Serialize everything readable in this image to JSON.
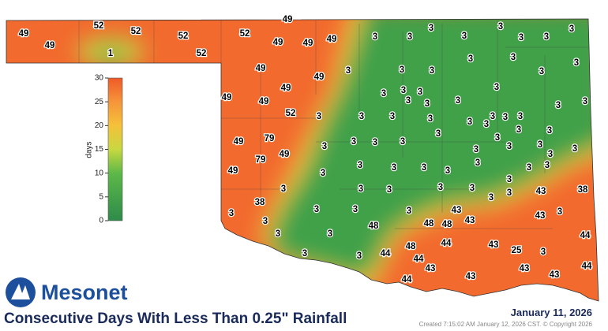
{
  "map": {
    "title": "Consecutive Days With Less Than 0.25\" Rainfall",
    "date": "January 11, 2026",
    "created": "Created 7:15:02 AM January 12, 2026 CST. © Copyright 2026",
    "logo": "Mesonet",
    "colorbar": {
      "label": "days",
      "range": [
        0,
        30
      ],
      "ticks": [
        0,
        5,
        10,
        15,
        20,
        25,
        30
      ]
    },
    "station_values": [
      49,
      49,
      52,
      1,
      52,
      52,
      52,
      49,
      52,
      49,
      49,
      49,
      3,
      3,
      3,
      3,
      3,
      3,
      3,
      3,
      3,
      3,
      3,
      3,
      3,
      3,
      3,
      3,
      49,
      49,
      49,
      49,
      49,
      3,
      3,
      3,
      3,
      3,
      3,
      3,
      3,
      52,
      3,
      3,
      3,
      3,
      3,
      3,
      3,
      3,
      3,
      3,
      49,
      79,
      3,
      3,
      3,
      3,
      3,
      3,
      3,
      3,
      3,
      79,
      49,
      3,
      3,
      3,
      49,
      3,
      3,
      3,
      3,
      3,
      3,
      3,
      3,
      3,
      3,
      3,
      3,
      3,
      3,
      3,
      3,
      43,
      38,
      38,
      3,
      3,
      3,
      3,
      3,
      43,
      43,
      3,
      3,
      3,
      48,
      48,
      48,
      43,
      44,
      48,
      44,
      43,
      25,
      3,
      3,
      3,
      44,
      44,
      43,
      43,
      44,
      44,
      43,
      43
    ]
  }
}
